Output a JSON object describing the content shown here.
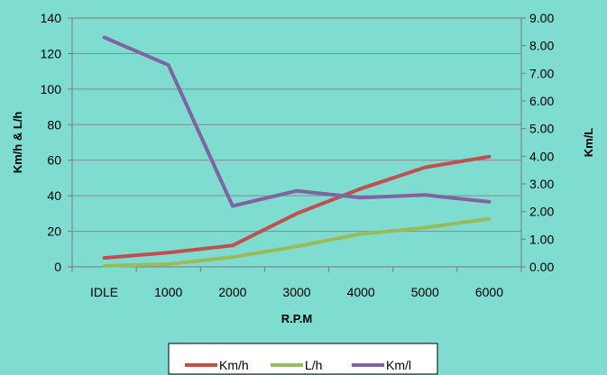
{
  "chart_data": {
    "type": "line",
    "categories": [
      "IDLE",
      "1000",
      "2000",
      "3000",
      "4000",
      "5000",
      "6000"
    ],
    "xlabel": "R.P.M",
    "ylabel": "Km/h & L/h",
    "y2label": "Km/L",
    "ylim": [
      0,
      140
    ],
    "yticks": [
      "0",
      "20",
      "40",
      "60",
      "80",
      "100",
      "120",
      "140"
    ],
    "y2lim": [
      0,
      9
    ],
    "y2ticks": [
      "0.00",
      "1.00",
      "2.00",
      "3.00",
      "4.00",
      "5.00",
      "6.00",
      "7.00",
      "8.00",
      "9.00"
    ],
    "grid": "horizontal",
    "legend_position": "bottom",
    "series": [
      {
        "name": "Km/h",
        "axis": "left",
        "color": "#c0504d",
        "values": [
          5,
          8,
          12,
          30,
          44,
          56,
          62
        ]
      },
      {
        "name": "L/h",
        "axis": "left",
        "color": "#9bbb59",
        "values": [
          0.5,
          1.5,
          5.5,
          11.5,
          18.5,
          22,
          27
        ]
      },
      {
        "name": "Km/l",
        "axis": "right",
        "color": "#8064a2",
        "values": [
          8.3,
          7.3,
          2.2,
          2.75,
          2.5,
          2.6,
          2.35
        ]
      }
    ]
  }
}
